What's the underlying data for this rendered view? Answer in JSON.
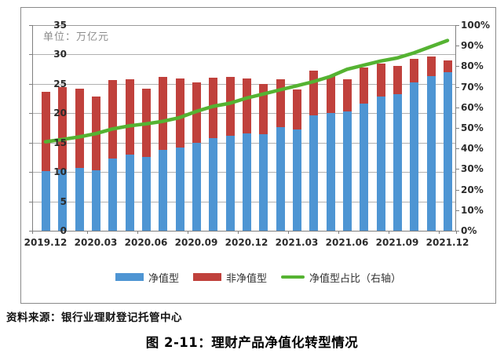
{
  "figure": {
    "unit_label": "单位：万亿元",
    "source": "资料来源：银行业理财登记托管中心",
    "title": "图 2-11：理财产品净值化转型情况"
  },
  "colors": {
    "net_value_bar": "#4e95d3",
    "non_net_value_bar": "#c0413c",
    "pct_line": "#55b332",
    "gridline": "#b0b0b0",
    "axis": "#7f7f7f"
  },
  "chart_data": {
    "type": "bar",
    "subtype": "stacked-bars-with-line",
    "x": [
      "2019.12",
      "2020.01",
      "2020.02",
      "2020.03",
      "2020.04",
      "2020.05",
      "2020.06",
      "2020.07",
      "2020.08",
      "2020.09",
      "2020.10",
      "2020.11",
      "2020.12",
      "2021.01",
      "2021.02",
      "2021.03",
      "2021.04",
      "2021.05",
      "2021.06",
      "2021.07",
      "2021.08",
      "2021.09",
      "2021.10",
      "2021.11",
      "2021.12"
    ],
    "x_tick_labels": [
      "2019.12",
      "2020.03",
      "2020.06",
      "2020.09",
      "2020.12",
      "2021.03",
      "2021.06",
      "2021.09",
      "2021.12"
    ],
    "series": [
      {
        "name": "净值型",
        "type": "bar",
        "stack": true,
        "color": "#4e95d3",
        "values": [
          10.1,
          10.4,
          10.7,
          10.3,
          12.3,
          13.0,
          12.5,
          13.8,
          14.2,
          15.0,
          15.7,
          16.1,
          16.6,
          16.4,
          17.6,
          17.3,
          19.6,
          20.0,
          20.3,
          21.7,
          22.9,
          23.3,
          25.2,
          26.3,
          27.0
        ]
      },
      {
        "name": "非净值型",
        "type": "bar",
        "stack": true,
        "color": "#c0413c",
        "values": [
          13.6,
          14.1,
          13.5,
          12.6,
          13.4,
          12.8,
          11.7,
          12.4,
          11.7,
          10.2,
          10.4,
          10.1,
          9.3,
          8.6,
          8.2,
          6.8,
          7.6,
          6.3,
          5.5,
          6.1,
          5.6,
          4.7,
          4.1,
          3.3,
          2.0
        ]
      },
      {
        "name": "净值型占比（右轴）",
        "type": "line",
        "axis": "right",
        "color": "#55b332",
        "values": [
          43.3,
          44.4,
          45.6,
          47.2,
          49.5,
          51.0,
          52.0,
          53.2,
          55.0,
          58.0,
          60.5,
          62.0,
          64.5,
          66.5,
          68.5,
          70.5,
          72.5,
          75.0,
          78.5,
          80.5,
          82.5,
          84.0,
          86.5,
          89.5,
          92.5
        ]
      }
    ],
    "left_axis": {
      "min": 0,
      "max": 35,
      "step": 5,
      "unit": "万亿元",
      "tick_labels": [
        "35",
        "30",
        "25",
        "20",
        "15",
        "10",
        "5",
        "0"
      ]
    },
    "right_axis": {
      "min": 0,
      "max": 100,
      "step": 10,
      "tick_labels": [
        "100%",
        "90%",
        "80%",
        "70%",
        "60%",
        "50%",
        "40%",
        "30%",
        "20%",
        "10%",
        "0%"
      ]
    },
    "grid": true,
    "legend_position": "bottom"
  }
}
